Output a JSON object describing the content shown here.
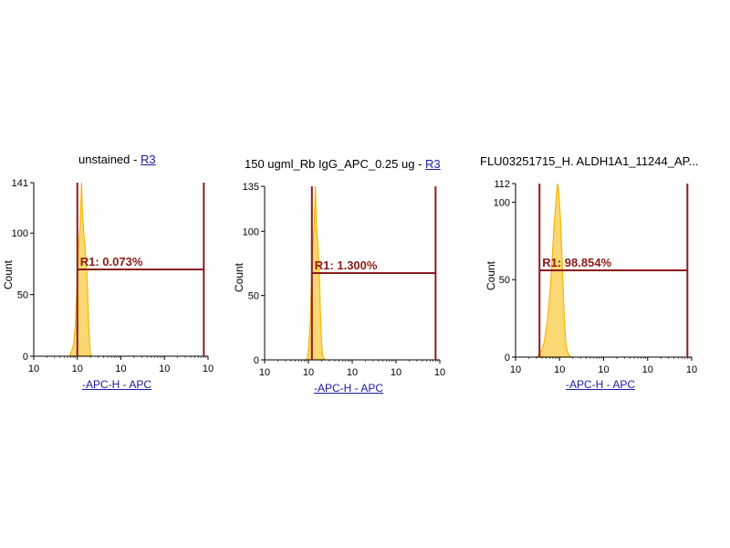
{
  "colors": {
    "histogram": "#f5b800",
    "gate": "#8b1a1a",
    "axis": "#000000",
    "gate_label": "#8b1a1a",
    "link": "#1a1aa0"
  },
  "chart_data": [
    {
      "type": "area",
      "title": "unstained",
      "title_separator": " - ",
      "title_gate": "R3",
      "xlabel": "-APC-H - APC",
      "ylabel": "Count",
      "x_scale": "log",
      "xlim": [
        1,
        10000
      ],
      "ylim": [
        0,
        141
      ],
      "y_ticks": [
        0,
        50,
        100,
        141
      ],
      "x_tick_labels": [
        "10",
        "10",
        "10",
        "10",
        "10"
      ],
      "gate": {
        "name": "R1",
        "percent": "0.073%",
        "label": "R1: 0.073%",
        "x_start": 10,
        "x_end": 8000
      },
      "x": [
        6.5,
        7.0,
        7.5,
        8.0,
        8.5,
        9.0,
        9.5,
        10.0,
        10.5,
        11.0,
        11.5,
        12.0,
        12.5,
        13.0,
        13.5,
        14.0,
        14.5,
        15.0,
        15.5,
        16.0,
        16.5,
        17.0,
        17.5,
        18.0,
        18.5,
        19.0,
        19.5,
        20.0,
        21.0
      ],
      "values": [
        0,
        2,
        5,
        8,
        15,
        25,
        45,
        65,
        80,
        95,
        105,
        120,
        141,
        118,
        110,
        100,
        95,
        88,
        82,
        75,
        68,
        58,
        45,
        32,
        20,
        12,
        6,
        2,
        0
      ]
    },
    {
      "type": "area",
      "title": "150 ugml_Rb IgG_APC_0.25 ug",
      "title_separator": " - ",
      "title_gate": "R3",
      "xlabel": "-APC-H - APC",
      "ylabel": "Count",
      "x_scale": "log",
      "xlim": [
        1,
        10000
      ],
      "ylim": [
        0,
        135
      ],
      "y_ticks": [
        0,
        50,
        100,
        135
      ],
      "x_tick_labels": [
        "10",
        "10",
        "10",
        "10",
        "10"
      ],
      "gate": {
        "name": "R1",
        "percent": "1.300%",
        "label": "R1: 1.300%",
        "x_start": 12,
        "x_end": 8000
      },
      "x": [
        9.0,
        9.5,
        10.0,
        10.5,
        11.0,
        11.5,
        12.0,
        12.5,
        13.0,
        13.5,
        14.0,
        14.5,
        15.0,
        15.5,
        16.0,
        16.5,
        17.0,
        17.5,
        18.0,
        18.5,
        19.0,
        19.5,
        20.0,
        20.5,
        21.0,
        22.0,
        23.0,
        24.0
      ],
      "values": [
        0,
        2,
        8,
        18,
        30,
        50,
        70,
        85,
        95,
        105,
        120,
        135,
        110,
        100,
        95,
        90,
        80,
        70,
        60,
        45,
        32,
        22,
        14,
        8,
        4,
        2,
        1,
        0
      ]
    },
    {
      "type": "area",
      "title": "FLU03251715_H. ALDH1A1_11244_AP...",
      "title_separator": "",
      "title_gate": "",
      "xlabel": "-APC-H - APC",
      "ylabel": "Count",
      "x_scale": "log",
      "xlim": [
        1,
        10000
      ],
      "ylim": [
        0,
        112
      ],
      "y_ticks": [
        0,
        50,
        100,
        112
      ],
      "x_tick_labels": [
        "10",
        "10",
        "10",
        "10",
        "10"
      ],
      "gate": {
        "name": "R1",
        "percent": "98.854%",
        "label": "R1: 98.854%",
        "x_start": 3.5,
        "x_end": 8000
      },
      "x": [
        3.0,
        3.5,
        4.0,
        4.5,
        5.0,
        5.5,
        6.0,
        6.5,
        7.0,
        7.5,
        8.0,
        8.5,
        9.0,
        9.5,
        10.0,
        10.5,
        11.0,
        11.5,
        12.0,
        12.5,
        13.0,
        13.5,
        14.0,
        15.0,
        16.0,
        17.0,
        18.0
      ],
      "values": [
        0,
        2,
        5,
        10,
        18,
        28,
        40,
        55,
        70,
        85,
        95,
        105,
        112,
        108,
        98,
        88,
        75,
        60,
        45,
        32,
        22,
        14,
        8,
        4,
        2,
        1,
        0
      ]
    }
  ]
}
